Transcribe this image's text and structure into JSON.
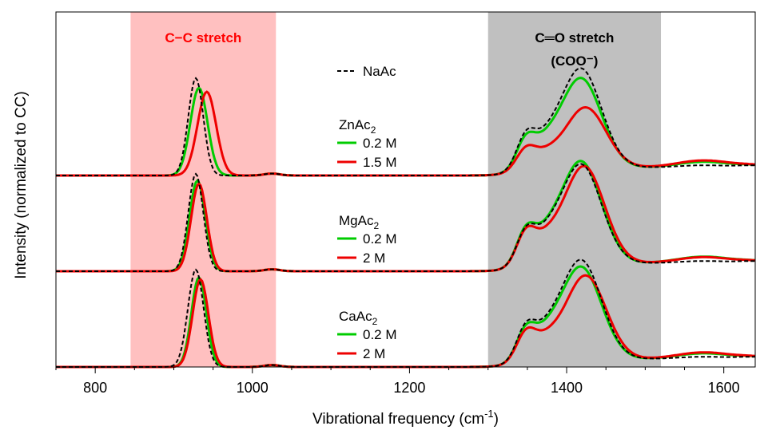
{
  "chart_data": {
    "type": "line",
    "xlabel": "Vibrational frequency (cm",
    "xlabel_sup": "-1",
    "xlabel_end": ")",
    "ylabel": "Intensity (normalized to CC)",
    "xlim": [
      750,
      1640
    ],
    "xticks": [
      800,
      1000,
      1200,
      1400,
      1600
    ],
    "yticks_visible": false,
    "bands": [
      {
        "label": "C−C stretch",
        "label2": "",
        "from": 845,
        "to": 1030,
        "color": "#ffc0c0",
        "text_color": "#ff0000"
      },
      {
        "label": "C═O stretch",
        "label2": "(COO⁻)",
        "from": 1300,
        "to": 1520,
        "color": "#c0c0c0",
        "text_color": "#000000"
      }
    ],
    "legend_reference": {
      "label": "NaAc",
      "style": "dashed",
      "color": "#000000"
    },
    "groups": [
      {
        "salt": "ZnAc",
        "salt_sub": "2",
        "offset": 2,
        "series": [
          {
            "name": "0.2 M",
            "color": "#00cc00",
            "cc_pos": 932,
            "cc_width": 24,
            "cc_amp": 0.9,
            "coo_amp": 0.92,
            "coo_pos": 1418,
            "tail": 0.12
          },
          {
            "name": "1.5 M",
            "color": "#ee0000",
            "cc_pos": 942,
            "cc_width": 26,
            "cc_amp": 0.86,
            "coo_amp": 0.62,
            "coo_pos": 1424,
            "tail": 0.15
          }
        ]
      },
      {
        "salt": "MgAc",
        "salt_sub": "2",
        "offset": 1,
        "series": [
          {
            "name": "0.2 M",
            "color": "#00cc00",
            "cc_pos": 930,
            "cc_width": 22,
            "cc_amp": 0.93,
            "coo_amp": 1.05,
            "coo_pos": 1418,
            "tail": 0.14
          },
          {
            "name": "2 M",
            "color": "#ee0000",
            "cc_pos": 932,
            "cc_width": 22,
            "cc_amp": 0.9,
            "coo_amp": 1.0,
            "coo_pos": 1422,
            "tail": 0.13
          }
        ]
      },
      {
        "salt": "CaAc",
        "salt_sub": "2",
        "offset": 0,
        "series": [
          {
            "name": "0.2 M",
            "color": "#00cc00",
            "cc_pos": 932,
            "cc_width": 21,
            "cc_amp": 0.92,
            "coo_amp": 0.95,
            "coo_pos": 1418,
            "tail": 0.12
          },
          {
            "name": "2 M",
            "color": "#ee0000",
            "cc_pos": 934,
            "cc_width": 22,
            "cc_amp": 0.9,
            "coo_amp": 0.86,
            "coo_pos": 1424,
            "tail": 0.14
          }
        ]
      }
    ]
  }
}
